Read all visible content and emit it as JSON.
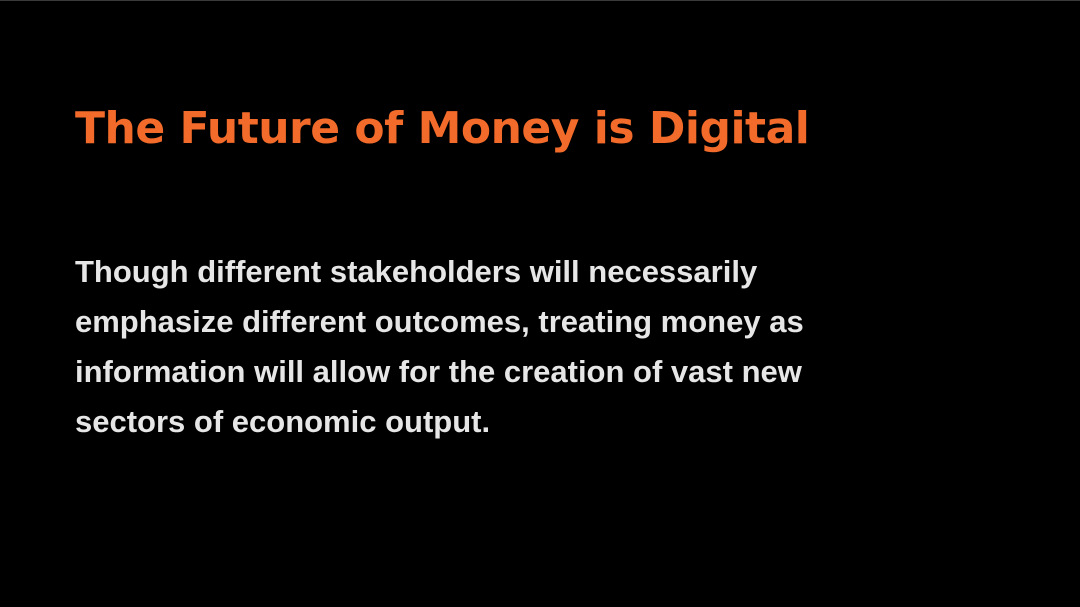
{
  "slide": {
    "title": "The Future of Money is Digital",
    "body_lines": [
      "Though different stakeholders will necessarily",
      "emphasize different outcomes, treating money as",
      "information will allow for the creation of vast new",
      "sectors of economic output."
    ]
  },
  "colors": {
    "background": "#000000",
    "title": "#f26b2a",
    "body": "#e6e6e6"
  }
}
